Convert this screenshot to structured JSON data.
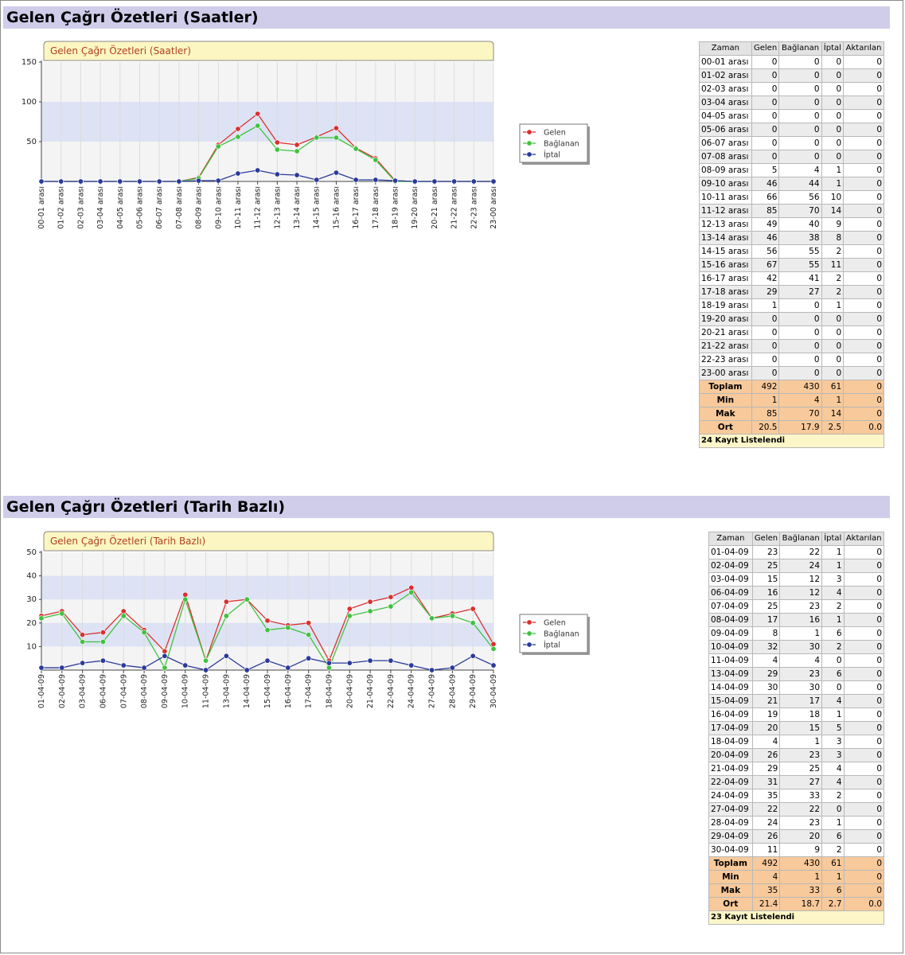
{
  "sections": [
    {
      "title": "Gelen Çağrı Özetleri (Saatler)"
    },
    {
      "title": "Gelen Çağrı Özetleri (Tarih Bazlı)"
    }
  ],
  "chart_data": [
    {
      "type": "line",
      "title": "Gelen Çağrı Özetleri (Saatler)",
      "categories": [
        "00-01 arası",
        "01-02 arası",
        "02-03 arası",
        "03-04 arası",
        "04-05 arası",
        "05-06 arası",
        "06-07 arası",
        "07-08 arası",
        "08-09 arası",
        "09-10 arası",
        "10-11 arası",
        "11-12 arası",
        "12-13 arası",
        "13-14 arası",
        "14-15 arası",
        "15-16 arası",
        "16-17 arası",
        "17-18 arası",
        "18-19 arası",
        "19-20 arası",
        "20-21 arası",
        "21-22 arası",
        "22-23 arası",
        "23-00 arası"
      ],
      "series": [
        {
          "name": "Gelen",
          "color": "#d93030",
          "values": [
            0,
            0,
            0,
            0,
            0,
            0,
            0,
            0,
            5,
            46,
            66,
            85,
            49,
            46,
            56,
            67,
            42,
            29,
            1,
            0,
            0,
            0,
            0,
            0
          ]
        },
        {
          "name": "Bağlanan",
          "color": "#3fc23f",
          "values": [
            0,
            0,
            0,
            0,
            0,
            0,
            0,
            0,
            4,
            44,
            56,
            70,
            40,
            38,
            55,
            55,
            41,
            27,
            0,
            0,
            0,
            0,
            0,
            0
          ]
        },
        {
          "name": "İptal",
          "color": "#2a3a9a",
          "values": [
            0,
            0,
            0,
            0,
            0,
            0,
            0,
            0,
            1,
            1,
            10,
            14,
            9,
            8,
            2,
            11,
            2,
            2,
            1,
            0,
            0,
            0,
            0,
            0
          ]
        }
      ],
      "ylim": [
        0,
        150
      ],
      "yticks": [
        "150",
        "100",
        "50"
      ],
      "band_ranges": [
        [
          50,
          100
        ]
      ],
      "legend": "right"
    },
    {
      "type": "line",
      "title": "Gelen Çağrı Özetleri (Tarih Bazlı)",
      "categories": [
        "01-04-09",
        "02-04-09",
        "03-04-09",
        "06-04-09",
        "07-04-09",
        "08-04-09",
        "09-04-09",
        "10-04-09",
        "11-04-09",
        "13-04-09",
        "14-04-09",
        "15-04-09",
        "16-04-09",
        "17-04-09",
        "18-04-09",
        "20-04-09",
        "21-04-09",
        "22-04-09",
        "24-04-09",
        "27-04-09",
        "28-04-09",
        "29-04-09",
        "30-04-09"
      ],
      "series": [
        {
          "name": "Gelen",
          "color": "#d93030",
          "values": [
            23,
            25,
            15,
            16,
            25,
            17,
            8,
            32,
            4,
            29,
            30,
            21,
            19,
            20,
            4,
            26,
            29,
            31,
            35,
            22,
            24,
            26,
            11
          ]
        },
        {
          "name": "Bağlanan",
          "color": "#3fc23f",
          "values": [
            22,
            24,
            12,
            12,
            23,
            16,
            1,
            30,
            4,
            23,
            30,
            17,
            18,
            15,
            1,
            23,
            25,
            27,
            33,
            22,
            23,
            20,
            9
          ]
        },
        {
          "name": "İptal",
          "color": "#2a3a9a",
          "values": [
            1,
            1,
            3,
            4,
            2,
            1,
            6,
            2,
            0,
            6,
            0,
            4,
            1,
            5,
            3,
            3,
            4,
            4,
            2,
            0,
            1,
            6,
            2
          ]
        }
      ],
      "ylim": [
        0,
        50
      ],
      "yticks": [
        "50",
        "40",
        "30",
        "20",
        "10"
      ],
      "band_ranges": [
        [
          10,
          20
        ],
        [
          30,
          40
        ]
      ],
      "legend": "right"
    }
  ],
  "tables": [
    {
      "headers": [
        "Zaman",
        "Gelen",
        "Bağlanan",
        "İptal",
        "Aktarılan"
      ],
      "rows": [
        [
          "00-01 arası",
          "0",
          "0",
          "0",
          "0"
        ],
        [
          "01-02 arası",
          "0",
          "0",
          "0",
          "0"
        ],
        [
          "02-03 arası",
          "0",
          "0",
          "0",
          "0"
        ],
        [
          "03-04 arası",
          "0",
          "0",
          "0",
          "0"
        ],
        [
          "04-05 arası",
          "0",
          "0",
          "0",
          "0"
        ],
        [
          "05-06 arası",
          "0",
          "0",
          "0",
          "0"
        ],
        [
          "06-07 arası",
          "0",
          "0",
          "0",
          "0"
        ],
        [
          "07-08 arası",
          "0",
          "0",
          "0",
          "0"
        ],
        [
          "08-09 arası",
          "5",
          "4",
          "1",
          "0"
        ],
        [
          "09-10 arası",
          "46",
          "44",
          "1",
          "0"
        ],
        [
          "10-11 arası",
          "66",
          "56",
          "10",
          "0"
        ],
        [
          "11-12 arası",
          "85",
          "70",
          "14",
          "0"
        ],
        [
          "12-13 arası",
          "49",
          "40",
          "9",
          "0"
        ],
        [
          "13-14 arası",
          "46",
          "38",
          "8",
          "0"
        ],
        [
          "14-15 arası",
          "56",
          "55",
          "2",
          "0"
        ],
        [
          "15-16 arası",
          "67",
          "55",
          "11",
          "0"
        ],
        [
          "16-17 arası",
          "42",
          "41",
          "2",
          "0"
        ],
        [
          "17-18 arası",
          "29",
          "27",
          "2",
          "0"
        ],
        [
          "18-19 arası",
          "1",
          "0",
          "1",
          "0"
        ],
        [
          "19-20 arası",
          "0",
          "0",
          "0",
          "0"
        ],
        [
          "20-21 arası",
          "0",
          "0",
          "0",
          "0"
        ],
        [
          "21-22 arası",
          "0",
          "0",
          "0",
          "0"
        ],
        [
          "22-23 arası",
          "0",
          "0",
          "0",
          "0"
        ],
        [
          "23-00 arası",
          "0",
          "0",
          "0",
          "0"
        ]
      ],
      "summary": [
        [
          "Toplam",
          "492",
          "430",
          "61",
          "0"
        ],
        [
          "Min",
          "1",
          "4",
          "1",
          "0"
        ],
        [
          "Mak",
          "85",
          "70",
          "14",
          "0"
        ],
        [
          "Ort",
          "20.5",
          "17.9",
          "2.5",
          "0.0"
        ]
      ],
      "footer": "24 Kayıt Listelendi"
    },
    {
      "headers": [
        "Zaman",
        "Gelen",
        "Bağlanan",
        "İptal",
        "Aktarılan"
      ],
      "rows": [
        [
          "01-04-09",
          "23",
          "22",
          "1",
          "0"
        ],
        [
          "02-04-09",
          "25",
          "24",
          "1",
          "0"
        ],
        [
          "03-04-09",
          "15",
          "12",
          "3",
          "0"
        ],
        [
          "06-04-09",
          "16",
          "12",
          "4",
          "0"
        ],
        [
          "07-04-09",
          "25",
          "23",
          "2",
          "0"
        ],
        [
          "08-04-09",
          "17",
          "16",
          "1",
          "0"
        ],
        [
          "09-04-09",
          "8",
          "1",
          "6",
          "0"
        ],
        [
          "10-04-09",
          "32",
          "30",
          "2",
          "0"
        ],
        [
          "11-04-09",
          "4",
          "4",
          "0",
          "0"
        ],
        [
          "13-04-09",
          "29",
          "23",
          "6",
          "0"
        ],
        [
          "14-04-09",
          "30",
          "30",
          "0",
          "0"
        ],
        [
          "15-04-09",
          "21",
          "17",
          "4",
          "0"
        ],
        [
          "16-04-09",
          "19",
          "18",
          "1",
          "0"
        ],
        [
          "17-04-09",
          "20",
          "15",
          "5",
          "0"
        ],
        [
          "18-04-09",
          "4",
          "1",
          "3",
          "0"
        ],
        [
          "20-04-09",
          "26",
          "23",
          "3",
          "0"
        ],
        [
          "21-04-09",
          "29",
          "25",
          "4",
          "0"
        ],
        [
          "22-04-09",
          "31",
          "27",
          "4",
          "0"
        ],
        [
          "24-04-09",
          "35",
          "33",
          "2",
          "0"
        ],
        [
          "27-04-09",
          "22",
          "22",
          "0",
          "0"
        ],
        [
          "28-04-09",
          "24",
          "23",
          "1",
          "0"
        ],
        [
          "29-04-09",
          "26",
          "20",
          "6",
          "0"
        ],
        [
          "30-04-09",
          "11",
          "9",
          "2",
          "0"
        ]
      ],
      "summary": [
        [
          "Toplam",
          "492",
          "430",
          "61",
          "0"
        ],
        [
          "Min",
          "4",
          "1",
          "1",
          "0"
        ],
        [
          "Mak",
          "35",
          "33",
          "6",
          "0"
        ],
        [
          "Ort",
          "21.4",
          "18.7",
          "2.7",
          "0.0"
        ]
      ],
      "footer": "23 Kayıt Listelendi"
    }
  ]
}
